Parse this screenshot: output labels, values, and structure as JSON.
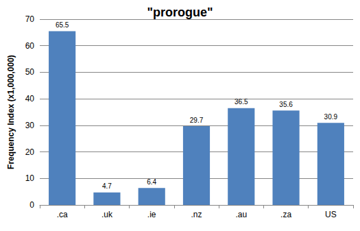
{
  "chart_data": {
    "type": "bar",
    "title": "\"prorogue\"",
    "y_label": "Frequency Index (x1,000,000)",
    "categories": [
      ".ca",
      ".uk",
      ".ie",
      ".nz",
      ".au",
      ".za",
      "US"
    ],
    "values": [
      65.5,
      4.7,
      6.4,
      29.7,
      36.5,
      35.6,
      30.9
    ],
    "color": "#4f81bd",
    "ylim": [
      0,
      70
    ],
    "yticks": [
      0,
      10,
      20,
      30,
      40,
      50,
      60,
      70
    ],
    "grid": true,
    "data_labels": true
  }
}
